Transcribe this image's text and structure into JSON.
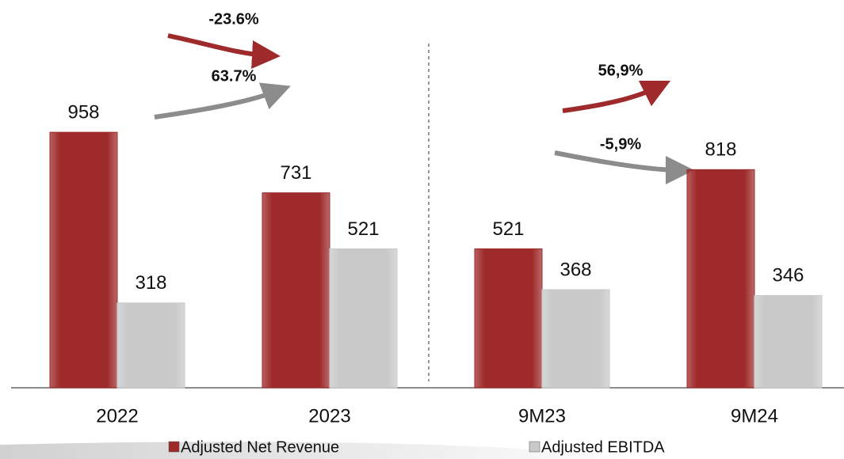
{
  "chart_data": {
    "type": "bar",
    "categories": [
      "2022",
      "2023",
      "9M23",
      "9M24"
    ],
    "series": [
      {
        "name": "Adjusted Net Revenue",
        "color": "#9e2a2b",
        "values": [
          958,
          731,
          521,
          818
        ]
      },
      {
        "name": "Adjusted EBITDA",
        "color": "#c9c9c9",
        "values": [
          318,
          521,
          368,
          346
        ]
      }
    ],
    "ylim": [
      0,
      1000
    ],
    "annotations": [
      "-23.6%",
      "63.7%",
      "56,9%",
      "-5,9%"
    ]
  }
}
